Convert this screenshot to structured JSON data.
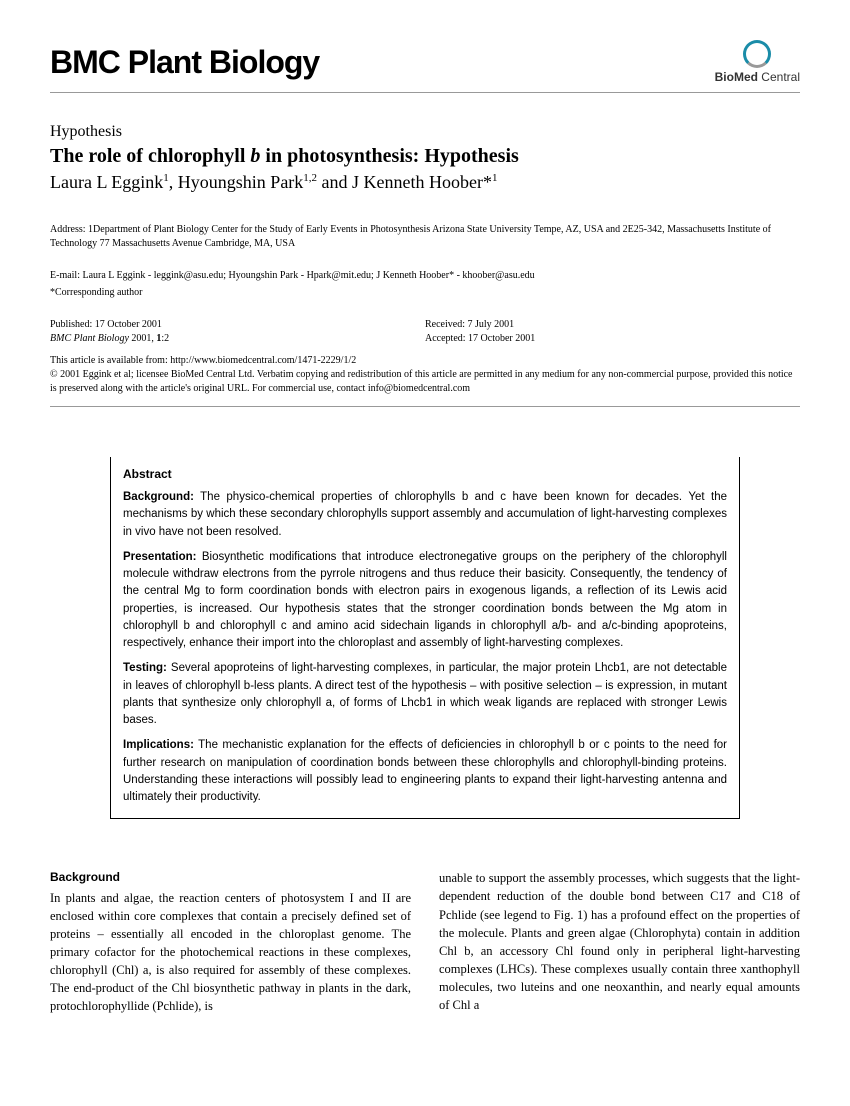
{
  "header": {
    "journal_name": "BMC Plant Biology",
    "logo_brand_a": "BioMed",
    "logo_brand_b": " Central"
  },
  "article": {
    "type": "Hypothesis",
    "title": "The role of chlorophyll b in photosynthesis: Hypothesis",
    "authors_html": "Laura L Eggink<sup>1</sup>, Hyoungshin Park<sup>1,2</sup> and J Kenneth Hoober*<sup>1</sup>"
  },
  "meta": {
    "address": "Address: 1Department of Plant Biology Center for the Study of Early Events in Photosynthesis Arizona State University Tempe, AZ, USA and 2E25-342, Massachusetts Institute of Technology 77 Massachusetts Avenue Cambridge, MA, USA",
    "emails": "E-mail: Laura L Eggink - leggink@asu.edu; Hyoungshin Park - Hpark@mit.edu; J Kenneth Hoober* - khoober@asu.edu",
    "corresponding": "*Corresponding author"
  },
  "pub": {
    "published": "Published: 17 October 2001",
    "citation": "BMC Plant Biology 2001, 1:2",
    "received": "Received: 7 July 2001",
    "accepted": "Accepted: 17 October 2001",
    "available": "This article is available from: http://www.biomedcentral.com/1471-2229/1/2",
    "copyright": "© 2001 Eggink et al; licensee BioMed Central Ltd. Verbatim copying and redistribution of this article are permitted in any medium for any non-commercial purpose, provided this notice is preserved along with the article's original URL. For commercial use, contact info@biomedcentral.com"
  },
  "abstract": {
    "heading": "Abstract",
    "background_label": "Background:",
    "background_text": " The physico-chemical properties of chlorophylls b and c have been known for decades. Yet the mechanisms by which these secondary chlorophylls support assembly and accumulation of light-harvesting complexes in vivo have not been resolved.",
    "presentation_label": "Presentation:",
    "presentation_text": " Biosynthetic modifications that introduce electronegative groups on the periphery of the chlorophyll molecule withdraw electrons from the pyrrole nitrogens and thus reduce their basicity. Consequently, the tendency of the central Mg to form coordination bonds with electron pairs in exogenous ligands, a reflection of its Lewis acid properties, is increased. Our hypothesis states that the stronger coordination bonds between the Mg atom in chlorophyll b and chlorophyll c and amino acid sidechain ligands in chlorophyll a/b- and a/c-binding apoproteins, respectively, enhance their import into the chloroplast and assembly of light-harvesting complexes.",
    "testing_label": "Testing:",
    "testing_text": " Several apoproteins of light-harvesting complexes, in particular, the major protein Lhcb1, are not detectable in leaves of chlorophyll b-less plants. A direct test of the hypothesis – with positive selection – is expression, in mutant plants that synthesize only chlorophyll a, of forms of Lhcb1 in which weak ligands are replaced with stronger Lewis bases.",
    "implications_label": "Implications:",
    "implications_text": " The mechanistic explanation for the effects of deficiencies in chlorophyll b or c points to the need for further research on manipulation of coordination bonds between these chlorophylls and chlorophyll-binding proteins. Understanding these interactions will possibly lead to engineering plants to expand their light-harvesting antenna and ultimately their productivity."
  },
  "body": {
    "section_head": "Background",
    "col1": "In plants and algae, the reaction centers of photosystem I and II are enclosed within core complexes that contain a precisely defined set of proteins – essentially all encoded in the chloroplast genome. The primary cofactor for the photochemical reactions in these complexes, chlorophyll (Chl) a, is also required for assembly of these complexes. The end-product of the Chl biosynthetic pathway in plants in the dark, protochlorophyllide (Pchlide), is",
    "col2": "unable to support the assembly processes, which suggests that the light-dependent reduction of the double bond between C17 and C18 of Pchlide (see legend to Fig. 1) has a profound effect on the properties of the molecule. Plants and green algae (Chlorophyta) contain in addition Chl b, an accessory Chl found only in peripheral light-harvesting complexes (LHCs). These complexes usually contain three xanthophyll molecules, two luteins and one neoxanthin, and nearly equal amounts of Chl a"
  }
}
